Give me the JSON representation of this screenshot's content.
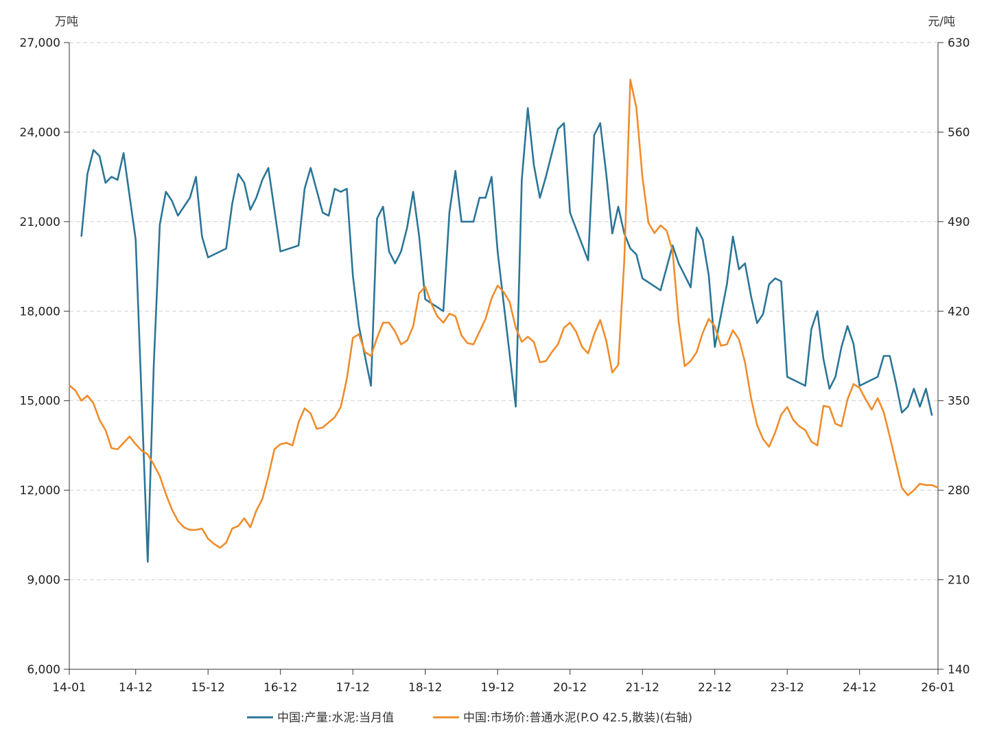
{
  "chart_data": {
    "type": "line",
    "title": "",
    "left_axis": {
      "unit": "万吨",
      "ylim": [
        6000,
        27000
      ],
      "ticks": [
        6000,
        9000,
        12000,
        15000,
        18000,
        21000,
        24000,
        27000
      ],
      "tick_labels": [
        "6,000",
        "9,000",
        "12,000",
        "15,000",
        "18,000",
        "21,000",
        "24,000",
        "27,000"
      ]
    },
    "right_axis": {
      "unit": "元/吨",
      "ylim": [
        140,
        630
      ],
      "ticks": [
        140,
        210,
        280,
        350,
        420,
        490,
        560,
        630
      ],
      "tick_labels": [
        "140",
        "210",
        "280",
        "350",
        "420",
        "490",
        "560",
        "630"
      ]
    },
    "x_axis": {
      "start": "2014-01",
      "end": "2026-01",
      "tick_labels": [
        "14-01",
        "14-12",
        "15-12",
        "16-12",
        "17-12",
        "18-12",
        "19-12",
        "20-12",
        "21-12",
        "22-12",
        "23-12",
        "24-12",
        "26-01"
      ],
      "tick_month_index": [
        0,
        11,
        23,
        35,
        47,
        59,
        71,
        83,
        95,
        107,
        119,
        131,
        144
      ]
    },
    "grid": true,
    "legend_position": "bottom",
    "series": [
      {
        "name": "中国:产量:水泥:当月值",
        "axis": "left",
        "color": "#2b7596",
        "points": [
          [
            2,
            20500
          ],
          [
            3,
            22600
          ],
          [
            4,
            23400
          ],
          [
            5,
            23200
          ],
          [
            6,
            22300
          ],
          [
            7,
            22500
          ],
          [
            8,
            22400
          ],
          [
            9,
            23300
          ],
          [
            11,
            20400
          ],
          [
            13,
            9600
          ],
          [
            14,
            16200
          ],
          [
            15,
            20900
          ],
          [
            16,
            22000
          ],
          [
            17,
            21700
          ],
          [
            18,
            21200
          ],
          [
            19,
            21500
          ],
          [
            20,
            21800
          ],
          [
            21,
            22500
          ],
          [
            22,
            20500
          ],
          [
            23,
            19800
          ],
          [
            26,
            20100
          ],
          [
            27,
            21600
          ],
          [
            28,
            22600
          ],
          [
            29,
            22300
          ],
          [
            30,
            21400
          ],
          [
            31,
            21800
          ],
          [
            32,
            22400
          ],
          [
            33,
            22800
          ],
          [
            35,
            20000
          ],
          [
            38,
            20200
          ],
          [
            39,
            22100
          ],
          [
            40,
            22800
          ],
          [
            42,
            21300
          ],
          [
            43,
            21200
          ],
          [
            44,
            22100
          ],
          [
            45,
            22000
          ],
          [
            46,
            22100
          ],
          [
            47,
            19200
          ],
          [
            48,
            17500
          ],
          [
            50,
            15500
          ],
          [
            51,
            21100
          ],
          [
            52,
            21500
          ],
          [
            53,
            20000
          ],
          [
            54,
            19600
          ],
          [
            55,
            20000
          ],
          [
            56,
            20800
          ],
          [
            57,
            22000
          ],
          [
            58,
            20500
          ],
          [
            59,
            18400
          ],
          [
            62,
            18000
          ],
          [
            63,
            21300
          ],
          [
            64,
            22700
          ],
          [
            65,
            21000
          ],
          [
            67,
            21000
          ],
          [
            68,
            21800
          ],
          [
            69,
            21800
          ],
          [
            70,
            22500
          ],
          [
            71,
            20000
          ],
          [
            74,
            14800
          ],
          [
            75,
            22400
          ],
          [
            76,
            24800
          ],
          [
            77,
            22900
          ],
          [
            78,
            21800
          ],
          [
            79,
            22500
          ],
          [
            80,
            23300
          ],
          [
            81,
            24100
          ],
          [
            82,
            24300
          ],
          [
            83,
            21300
          ],
          [
            86,
            19700
          ],
          [
            87,
            23900
          ],
          [
            88,
            24300
          ],
          [
            89,
            22600
          ],
          [
            90,
            20600
          ],
          [
            91,
            21500
          ],
          [
            92,
            20600
          ],
          [
            93,
            20100
          ],
          [
            94,
            19900
          ],
          [
            95,
            19100
          ],
          [
            98,
            18700
          ],
          [
            100,
            20200
          ],
          [
            101,
            19600
          ],
          [
            102,
            19200
          ],
          [
            103,
            18800
          ],
          [
            104,
            20800
          ],
          [
            105,
            20400
          ],
          [
            106,
            19200
          ],
          [
            107,
            16800
          ],
          [
            109,
            18900
          ],
          [
            110,
            20500
          ],
          [
            111,
            19400
          ],
          [
            112,
            19600
          ],
          [
            113,
            18500
          ],
          [
            114,
            17600
          ],
          [
            115,
            17900
          ],
          [
            116,
            18900
          ],
          [
            117,
            19100
          ],
          [
            118,
            19000
          ],
          [
            119,
            15800
          ],
          [
            122,
            15500
          ],
          [
            123,
            17400
          ],
          [
            124,
            18000
          ],
          [
            125,
            16400
          ],
          [
            126,
            15400
          ],
          [
            127,
            15800
          ],
          [
            128,
            16800
          ],
          [
            129,
            17500
          ],
          [
            130,
            16900
          ],
          [
            131,
            15500
          ],
          [
            134,
            15800
          ],
          [
            135,
            16500
          ],
          [
            136,
            16500
          ],
          [
            137,
            15600
          ],
          [
            138,
            14600
          ],
          [
            139,
            14800
          ],
          [
            140,
            15400
          ],
          [
            141,
            14800
          ],
          [
            142,
            15400
          ],
          [
            143,
            14500
          ]
        ]
      },
      {
        "name": "中国:市场价:普通水泥(P.O 42.5,散装)(右轴)",
        "axis": "right",
        "color": "#f08c2a",
        "points": [
          [
            0,
            362
          ],
          [
            1,
            358
          ],
          [
            2,
            350
          ],
          [
            3,
            354
          ],
          [
            4,
            348
          ],
          [
            5,
            335
          ],
          [
            6,
            327
          ],
          [
            7,
            313
          ],
          [
            8,
            312
          ],
          [
            9,
            317
          ],
          [
            10,
            322
          ],
          [
            11,
            316
          ],
          [
            12,
            311
          ],
          [
            13,
            308
          ],
          [
            14,
            300
          ],
          [
            15,
            291
          ],
          [
            16,
            277
          ],
          [
            17,
            265
          ],
          [
            18,
            256
          ],
          [
            19,
            251
          ],
          [
            20,
            249
          ],
          [
            21,
            249
          ],
          [
            22,
            250
          ],
          [
            23,
            242
          ],
          [
            24,
            238
          ],
          [
            25,
            235
          ],
          [
            26,
            239
          ],
          [
            27,
            250
          ],
          [
            28,
            252
          ],
          [
            29,
            258
          ],
          [
            30,
            251
          ],
          [
            31,
            264
          ],
          [
            32,
            273
          ],
          [
            33,
            291
          ],
          [
            34,
            312
          ],
          [
            35,
            316
          ],
          [
            36,
            317
          ],
          [
            37,
            315
          ],
          [
            38,
            333
          ],
          [
            39,
            344
          ],
          [
            40,
            340
          ],
          [
            41,
            328
          ],
          [
            42,
            329
          ],
          [
            43,
            333
          ],
          [
            44,
            337
          ],
          [
            45,
            345
          ],
          [
            46,
            367
          ],
          [
            47,
            399
          ],
          [
            48,
            402
          ],
          [
            49,
            388
          ],
          [
            50,
            385
          ],
          [
            51,
            399
          ],
          [
            52,
            411
          ],
          [
            53,
            411
          ],
          [
            54,
            404
          ],
          [
            55,
            394
          ],
          [
            56,
            397
          ],
          [
            57,
            408
          ],
          [
            58,
            434
          ],
          [
            59,
            439
          ],
          [
            60,
            426
          ],
          [
            61,
            416
          ],
          [
            62,
            411
          ],
          [
            63,
            418
          ],
          [
            64,
            416
          ],
          [
            65,
            401
          ],
          [
            66,
            395
          ],
          [
            67,
            394
          ],
          [
            68,
            404
          ],
          [
            69,
            414
          ],
          [
            70,
            430
          ],
          [
            71,
            440
          ],
          [
            72,
            435
          ],
          [
            73,
            427
          ],
          [
            74,
            407
          ],
          [
            75,
            396
          ],
          [
            76,
            400
          ],
          [
            77,
            396
          ],
          [
            78,
            380
          ],
          [
            79,
            381
          ],
          [
            80,
            388
          ],
          [
            81,
            394
          ],
          [
            82,
            407
          ],
          [
            83,
            411
          ],
          [
            84,
            404
          ],
          [
            85,
            392
          ],
          [
            86,
            387
          ],
          [
            87,
            402
          ],
          [
            88,
            413
          ],
          [
            89,
            397
          ],
          [
            90,
            372
          ],
          [
            91,
            378
          ],
          [
            92,
            460
          ],
          [
            93,
            601
          ],
          [
            94,
            579
          ],
          [
            95,
            525
          ],
          [
            96,
            489
          ],
          [
            97,
            481
          ],
          [
            98,
            487
          ],
          [
            99,
            483
          ],
          [
            100,
            467
          ],
          [
            101,
            412
          ],
          [
            102,
            377
          ],
          [
            103,
            381
          ],
          [
            104,
            388
          ],
          [
            105,
            403
          ],
          [
            106,
            414
          ],
          [
            107,
            408
          ],
          [
            108,
            393
          ],
          [
            109,
            394
          ],
          [
            110,
            405
          ],
          [
            111,
            398
          ],
          [
            112,
            380
          ],
          [
            113,
            352
          ],
          [
            114,
            331
          ],
          [
            115,
            320
          ],
          [
            116,
            314
          ],
          [
            117,
            325
          ],
          [
            118,
            339
          ],
          [
            119,
            345
          ],
          [
            120,
            335
          ],
          [
            121,
            330
          ],
          [
            122,
            327
          ],
          [
            123,
            318
          ],
          [
            124,
            315
          ],
          [
            125,
            346
          ],
          [
            126,
            345
          ],
          [
            127,
            332
          ],
          [
            128,
            330
          ],
          [
            129,
            351
          ],
          [
            130,
            363
          ],
          [
            131,
            360
          ],
          [
            132,
            351
          ],
          [
            133,
            343
          ],
          [
            134,
            352
          ],
          [
            135,
            341
          ],
          [
            136,
            322
          ],
          [
            137,
            302
          ],
          [
            138,
            282
          ],
          [
            139,
            276
          ],
          [
            140,
            280
          ],
          [
            141,
            285
          ],
          [
            142,
            284
          ],
          [
            143,
            284
          ],
          [
            144,
            282
          ]
        ]
      }
    ]
  }
}
